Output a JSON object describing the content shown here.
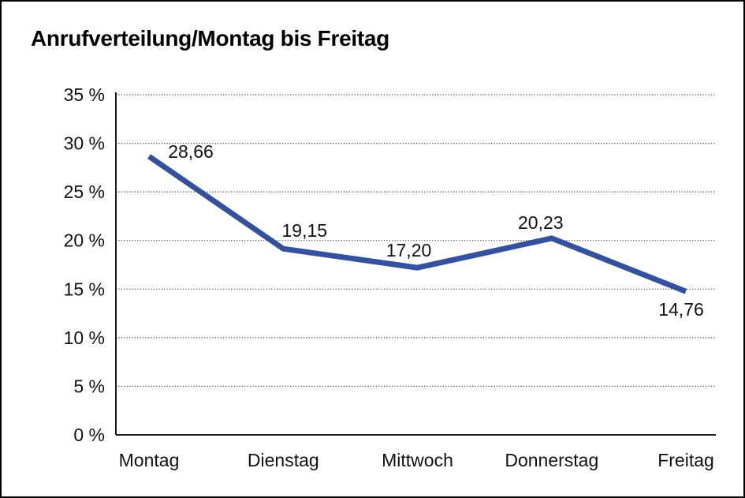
{
  "window": {
    "background": "#ffffff",
    "frame_border_color": "#000000"
  },
  "chart_data": {
    "type": "line",
    "title": "Anrufverteilung/Montag bis Freitag",
    "categories": [
      "Montag",
      "Dienstag",
      "Mittwoch",
      "Donnerstag",
      "Freitag"
    ],
    "values": [
      28.66,
      19.15,
      17.2,
      20.23,
      14.76
    ],
    "value_labels": [
      "28,66",
      "19,15",
      "17,20",
      "20,23",
      "14,76"
    ],
    "xlabel": "",
    "ylabel": "",
    "ylim": [
      0,
      35
    ],
    "ytick_step": 5,
    "ytick_labels": [
      "0 %",
      "5 %",
      "10 %",
      "15 %",
      "20 %",
      "25 %",
      "30 %",
      "35 %"
    ],
    "grid": "horizontal-dotted",
    "gridline_color": "#444444",
    "axis_color": "#000000",
    "line_color": "#33519D",
    "label_color": "#111111",
    "legend": "none"
  }
}
